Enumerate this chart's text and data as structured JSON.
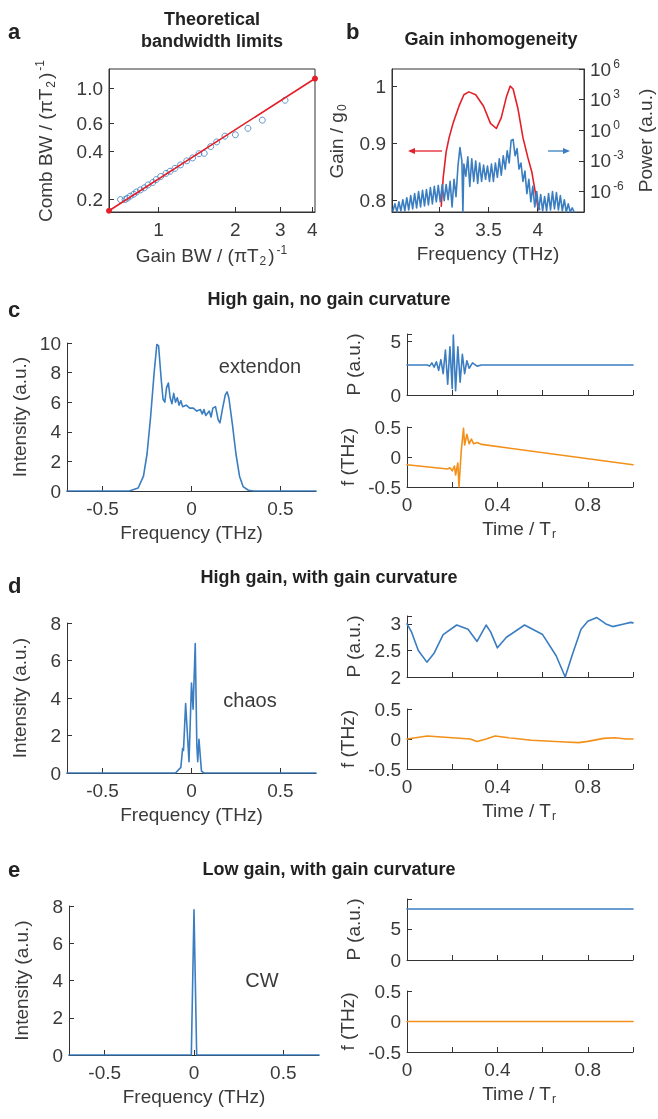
{
  "chart_data": [
    {
      "type": "scatter",
      "title": "Theoretical bandwidth limits",
      "xlabel": "Gain BW / (πT$_{2}$)$^{-1}$",
      "ylabel": "Comb BW / (πT$_{2}$)$^{-1}$",
      "annotations": [
        "a"
      ],
      "log": "xy",
      "marker": "circle",
      "xlim": [
        0.64,
        4.1
      ],
      "xticks": [
        1,
        2,
        3,
        4
      ],
      "ylim": [
        0.167,
        1.32
      ],
      "yticks": [
        0.2,
        0.4,
        0.6,
        {
          "value": 1,
          "label": "1.0"
        }
      ],
      "series": [
        {
          "type": "scatter",
          "color": "#3a7dc1",
          "x": [
            0.71,
            0.74,
            0.755,
            0.775,
            0.8,
            0.82,
            0.85,
            0.88,
            0.91,
            0.95,
            0.98,
            1.02,
            1.07,
            1.11,
            1.16,
            1.22,
            1.29,
            1.36,
            1.44,
            1.51,
            1.6,
            1.69,
            1.82,
            2.0,
            2.24,
            2.55,
            3.13
          ],
          "values": [
            0.2,
            0.2,
            0.204,
            0.21,
            0.216,
            0.223,
            0.23,
            0.237,
            0.247,
            0.256,
            0.267,
            0.279,
            0.292,
            0.301,
            0.314,
            0.33,
            0.35,
            0.365,
            0.388,
            0.39,
            0.43,
            0.46,
            0.5,
            0.51,
            0.56,
            0.63,
            0.84
          ]
        },
        {
          "type": "line",
          "color": "#e3202a",
          "x": [
            0.64,
            4.1
          ],
          "values": [
            0.17,
            1.15
          ]
        }
      ]
    },
    {
      "type": "line",
      "title": "Gain inhomogeneity",
      "xlabel": "Frequency (THz)",
      "ylabel": "Gain / g$_{0}$",
      "y2label": "Power (a.u.)",
      "annotations": [
        "b"
      ],
      "log": "y2",
      "xlim": [
        2.52,
        4.47
      ],
      "xticks": [
        3,
        3.5,
        4
      ],
      "ylim": [
        0.78,
        1.03
      ],
      "yticks": [
        0.8,
        0.9,
        {
          "value": 1,
          "label": "1"
        }
      ],
      "y2lim": [
        1e-08,
        1000000.0
      ],
      "y2ticks": [
        {
          "value": 1e-06,
          "label": "10$^{-6}$"
        },
        {
          "value": 0.001,
          "label": "10$^{-3}$"
        },
        {
          "value": 1,
          "label": "10$^{0}$"
        },
        {
          "value": 1000,
          "label": "10$^{3}$"
        },
        {
          "value": 1000000,
          "label": "10$^{6}$"
        }
      ],
      "series": [
        {
          "color": "#e3202a",
          "axis": "y",
          "x": [
            3.02,
            3.04,
            3.07,
            3.1,
            3.14,
            3.2,
            3.25,
            3.3,
            3.37,
            3.45,
            3.52,
            3.58,
            3.63,
            3.68,
            3.72,
            3.75,
            3.8,
            3.85,
            3.9,
            3.94,
            3.97,
            4.0,
            4.02
          ],
          "values": [
            0.79,
            0.84,
            0.885,
            0.91,
            0.935,
            0.965,
            0.985,
            0.99,
            0.985,
            0.965,
            0.935,
            0.926,
            0.945,
            0.98,
            1.0,
            0.995,
            0.96,
            0.91,
            0.875,
            0.85,
            0.82,
            0.79,
            0.785
          ]
        },
        {
          "color": "#3a7dc1",
          "axis": "y2",
          "x": [
            2.53,
            2.55,
            2.57,
            2.59,
            2.61,
            2.63,
            2.65,
            2.67,
            2.69,
            2.71,
            2.73,
            2.75,
            2.77,
            2.79,
            2.81,
            2.83,
            2.85,
            2.87,
            2.89,
            2.91,
            2.93,
            2.95,
            2.97,
            2.99,
            3.01,
            3.03,
            3.05,
            3.07,
            3.09,
            3.11,
            3.13,
            3.15,
            3.17,
            3.19,
            3.21,
            3.23,
            3.24,
            3.25,
            3.27,
            3.29,
            3.31,
            3.33,
            3.35,
            3.37,
            3.39,
            3.41,
            3.43,
            3.45,
            3.47,
            3.49,
            3.51,
            3.53,
            3.55,
            3.57,
            3.59,
            3.61,
            3.63,
            3.65,
            3.67,
            3.69,
            3.71,
            3.73,
            3.75,
            3.77,
            3.79,
            3.81,
            3.83,
            3.85,
            3.87,
            3.89,
            3.91,
            3.93,
            3.95,
            3.97,
            3.99,
            4.01,
            4.03,
            4.05,
            4.07,
            4.09,
            4.11,
            4.13,
            4.15,
            4.17,
            4.19,
            4.21,
            4.23,
            4.25,
            4.27,
            4.29,
            4.31,
            4.33,
            4.35,
            4.37
          ],
          "values": [
            1.3e-08,
            6.3e-08,
            1e-08,
            1e-07,
            1.3e-08,
            1.6e-07,
            1.3e-08,
            2.5e-07,
            1.6e-08,
            4e-07,
            2e-08,
            6.3e-07,
            2.5e-08,
            1e-06,
            3.2e-08,
            1.3e-06,
            4e-08,
            1.6e-06,
            5e-08,
            2.5e-06,
            6.3e-08,
            3.2e-06,
            1e-07,
            4e-06,
            1e-07,
            5e-06,
            1.3e-07,
            5e-06,
            1.6e-07,
            1e-05,
            3.2e-08,
            1.6e-05,
            3.2e-07,
            0.00032,
            0.02,
            0.001,
            1e-08,
            0.0005,
            3.2e-05,
            0.0025,
            3.2e-06,
            0.0016,
            1e-05,
            0.001,
            6.3e-06,
            0.00063,
            1e-05,
            0.0004,
            1.6e-05,
            0.00032,
            1e-05,
            0.0005,
            1e-05,
            0.00063,
            2.5e-05,
            0.0016,
            4e-05,
            0.0032,
            0.00016,
            0.01,
            0.00063,
            0.1,
            0.13,
            0.0032,
            0.016,
            0.00016,
            0.00063,
            1e-05,
            0.0001,
            6.3e-07,
            1.6e-05,
            1e-07,
            3.2e-06,
            3.2e-08,
            1e-06,
            1.6e-08,
            5e-07,
            1.3e-08,
            3.2e-07,
            1.3e-08,
            6.3e-07,
            1.6e-08,
            1e-06,
            2e-08,
            7.9e-07,
            1.6e-08,
            4e-07,
            1.3e-08,
            1.6e-07,
            1e-08,
            6.3e-08,
            1e-08,
            2.5e-08,
            1e-08
          ]
        }
      ]
    },
    {
      "type": "line",
      "title": "High gain, no gain curvature",
      "xlabel": "Frequency (THz)",
      "ylabel": "Intensity (a.u.)",
      "annotations": [
        "c",
        "extendon"
      ],
      "xlim": [
        -0.7,
        0.7
      ],
      "xticks": [
        -0.5,
        0,
        0.5
      ],
      "ylim": [
        0,
        10
      ],
      "yticks": [
        0,
        2,
        4,
        6,
        8,
        10
      ],
      "series": [
        {
          "color": "#3a7dc1",
          "x": [
            -0.7,
            -0.35,
            -0.3,
            -0.27,
            -0.25,
            -0.23,
            -0.21,
            -0.195,
            -0.185,
            -0.17,
            -0.16,
            -0.15,
            -0.14,
            -0.13,
            -0.12,
            -0.11,
            -0.1,
            -0.09,
            -0.08,
            -0.07,
            -0.06,
            -0.05,
            -0.03,
            -0.01,
            0.01,
            0.03,
            0.05,
            0.06,
            0.07,
            0.08,
            0.1,
            0.11,
            0.12,
            0.135,
            0.15,
            0.16,
            0.175,
            0.19,
            0.2,
            0.21,
            0.23,
            0.25,
            0.27,
            0.29,
            0.32,
            0.35,
            0.7
          ],
          "values": [
            0,
            0,
            0.2,
            1,
            2.5,
            5,
            8,
            9.9,
            9.8,
            7.5,
            6.2,
            6,
            7,
            7.3,
            6.3,
            5.9,
            6.6,
            6,
            6.3,
            5.8,
            6.1,
            5.7,
            5.8,
            5.6,
            5.6,
            5.4,
            5.5,
            5.2,
            5.5,
            5.1,
            5.4,
            5,
            5.6,
            5.7,
            4.8,
            4.6,
            5.6,
            6.5,
            6.7,
            6.3,
            4.5,
            2.5,
            1,
            0.3,
            0.05,
            0,
            0
          ]
        }
      ]
    },
    {
      "type": "line",
      "ylabel": "P (a.u.)",
      "tick_labels": "y",
      "xlim": [
        0,
        1
      ],
      "xticks": [
        0,
        {
          "value": 0.2,
          "label": null
        },
        0.4,
        {
          "value": 0.6,
          "label": null
        },
        0.8,
        {
          "value": 1,
          "label": null
        }
      ],
      "ylim": [
        0,
        5.7
      ],
      "yticks": [
        0,
        5
      ],
      "series": [
        {
          "color": "#3a7dc1",
          "x": [
            0,
            0.09,
            0.1,
            0.11,
            0.12,
            0.13,
            0.14,
            0.15,
            0.16,
            0.17,
            0.18,
            0.19,
            0.2,
            0.205,
            0.215,
            0.225,
            0.235,
            0.245,
            0.255,
            0.265,
            0.275,
            0.29,
            0.31,
            0.33,
            1
          ],
          "values": [
            2.8,
            2.8,
            2.7,
            3,
            2.6,
            3.1,
            2.3,
            3.3,
            2,
            4.2,
            1,
            4.5,
            0.6,
            5.6,
            0.4,
            4.5,
            1.2,
            3.8,
            2,
            3.2,
            2.5,
            3,
            2.7,
            2.8,
            2.8
          ]
        }
      ]
    },
    {
      "type": "line",
      "xlabel": "Time / T$_{r}$",
      "ylabel": "f (THz)",
      "xlim": [
        0,
        1
      ],
      "xticks": [
        0,
        {
          "value": 0.2,
          "label": null
        },
        0.4,
        {
          "value": 0.6,
          "label": null
        },
        0.8,
        {
          "value": 1,
          "label": null
        }
      ],
      "ylim": [
        -0.5,
        0.5
      ],
      "yticks": [
        -0.5,
        0,
        0.5
      ],
      "series": [
        {
          "color": "#f39019",
          "x": [
            0,
            0.18,
            0.19,
            0.2,
            0.21,
            0.215,
            0.225,
            0.23,
            0.24,
            0.25,
            0.255,
            0.265,
            0.275,
            0.285,
            0.295,
            0.31,
            0.33,
            1
          ],
          "values": [
            -0.13,
            -0.2,
            -0.18,
            -0.23,
            -0.15,
            -0.3,
            -0.1,
            -0.5,
            0.1,
            0.48,
            0.2,
            0.38,
            0.22,
            0.3,
            0.22,
            0.24,
            0.21,
            -0.13
          ]
        }
      ]
    },
    {
      "type": "line",
      "title": "High gain, with gain curvature",
      "xlabel": "Frequency (THz)",
      "ylabel": "Intensity (a.u.)",
      "annotations": [
        "d",
        "chaos"
      ],
      "xlim": [
        -0.7,
        0.7
      ],
      "xticks": [
        -0.5,
        0,
        0.5
      ],
      "ylim": [
        0,
        8
      ],
      "yticks": [
        0,
        2,
        4,
        6,
        8
      ],
      "series": [
        {
          "color": "#3a7dc1",
          "x": [
            -0.7,
            -0.09,
            -0.06,
            -0.05,
            -0.045,
            -0.033,
            -0.014,
            0,
            0.009,
            0.021,
            0.03,
            0.035,
            0.042,
            0.056,
            0.07,
            0.7
          ],
          "values": [
            0,
            0,
            0.3,
            1.3,
            1.2,
            3.7,
            0.6,
            4.8,
            3.4,
            6.9,
            1.5,
            0.6,
            1.8,
            0.1,
            0,
            0
          ]
        }
      ]
    },
    {
      "type": "line",
      "ylabel": "P (a.u.)",
      "tick_labels": "y",
      "xlim": [
        0,
        1
      ],
      "xticks": [
        0,
        {
          "value": 0.2,
          "label": null
        },
        0.4,
        {
          "value": 0.6,
          "label": null
        },
        0.8,
        {
          "value": 1,
          "label": null
        }
      ],
      "ylim": [
        2,
        3.15
      ],
      "yticks": [
        2,
        2.5,
        3
      ],
      "series": [
        {
          "color": "#3a7dc1",
          "x": [
            0,
            0.02,
            0.05,
            0.088,
            0.12,
            0.16,
            0.22,
            0.27,
            0.31,
            0.35,
            0.37,
            0.4,
            0.44,
            0.52,
            0.6,
            0.66,
            0.7,
            0.73,
            0.77,
            0.8,
            0.84,
            0.88,
            0.91,
            0.96,
            0.99,
            1
          ],
          "values": [
            3,
            2.85,
            2.5,
            2.28,
            2.45,
            2.8,
            2.98,
            2.9,
            2.67,
            2.98,
            2.85,
            2.55,
            2.75,
            2.98,
            2.8,
            2.4,
            2,
            2.4,
            2.9,
            3.05,
            3.12,
            3,
            2.95,
            3,
            3.03,
            3.02
          ]
        }
      ]
    },
    {
      "type": "line",
      "xlabel": "Time / T$_{r}$",
      "ylabel": "f (THz)",
      "xlim": [
        0,
        1
      ],
      "xticks": [
        0,
        {
          "value": 0.2,
          "label": null
        },
        0.4,
        {
          "value": 0.6,
          "label": null
        },
        0.8,
        {
          "value": 1,
          "label": null
        }
      ],
      "ylim": [
        -0.5,
        0.5
      ],
      "yticks": [
        -0.5,
        0,
        0.5
      ],
      "series": [
        {
          "color": "#f39019",
          "x": [
            0,
            0.09,
            0.2,
            0.28,
            0.31,
            0.35,
            0.39,
            0.45,
            0.55,
            0.7,
            0.76,
            0.8,
            0.87,
            0.92,
            0.97,
            1
          ],
          "values": [
            0,
            0.05,
            0.02,
            0,
            -0.04,
            0,
            0.05,
            0.02,
            -0.02,
            -0.05,
            -0.06,
            -0.04,
            0.01,
            0.02,
            0,
            0
          ]
        }
      ]
    },
    {
      "type": "line",
      "title": "Low gain, with gain curvature",
      "xlabel": "Frequency (THz)",
      "ylabel": "Intensity (a.u.)",
      "annotations": [
        "e",
        "CW"
      ],
      "xlim": [
        -0.7,
        0.7
      ],
      "xticks": [
        -0.5,
        0,
        0.5
      ],
      "ylim": [
        0,
        8
      ],
      "yticks": [
        0,
        2,
        4,
        6,
        8
      ],
      "series": [
        {
          "color": "#3a7dc1",
          "x": [
            -0.7,
            -0.015,
            0,
            0.015,
            0.7
          ],
          "values": [
            0,
            0,
            7.8,
            0,
            0
          ]
        }
      ]
    },
    {
      "type": "line",
      "ylabel": "P (a.u.)",
      "tick_labels": "y",
      "xlim": [
        0,
        1
      ],
      "xticks": [
        0,
        {
          "value": 0.2,
          "label": null
        },
        0.4,
        {
          "value": 0.6,
          "label": null
        },
        0.8,
        {
          "value": 1,
          "label": null
        }
      ],
      "ylim": [
        0,
        9.8
      ],
      "yticks": [
        0,
        5
      ],
      "series": [
        {
          "color": "#3a7dc1",
          "x": [
            0,
            1
          ],
          "values": [
            8.2,
            8.2
          ]
        }
      ]
    },
    {
      "type": "line",
      "xlabel": "Time / T$_{r}$",
      "ylabel": "f (THz)",
      "xlim": [
        0,
        1
      ],
      "xticks": [
        0,
        {
          "value": 0.2,
          "label": null
        },
        0.4,
        {
          "value": 0.6,
          "label": null
        },
        0.8,
        {
          "value": 1,
          "label": null
        }
      ],
      "ylim": [
        -0.5,
        0.5
      ],
      "yticks": [
        -0.5,
        0,
        0.5
      ],
      "series": [
        {
          "color": "#f39019",
          "x": [
            0,
            1
          ],
          "values": [
            0,
            0
          ]
        }
      ]
    }
  ]
}
